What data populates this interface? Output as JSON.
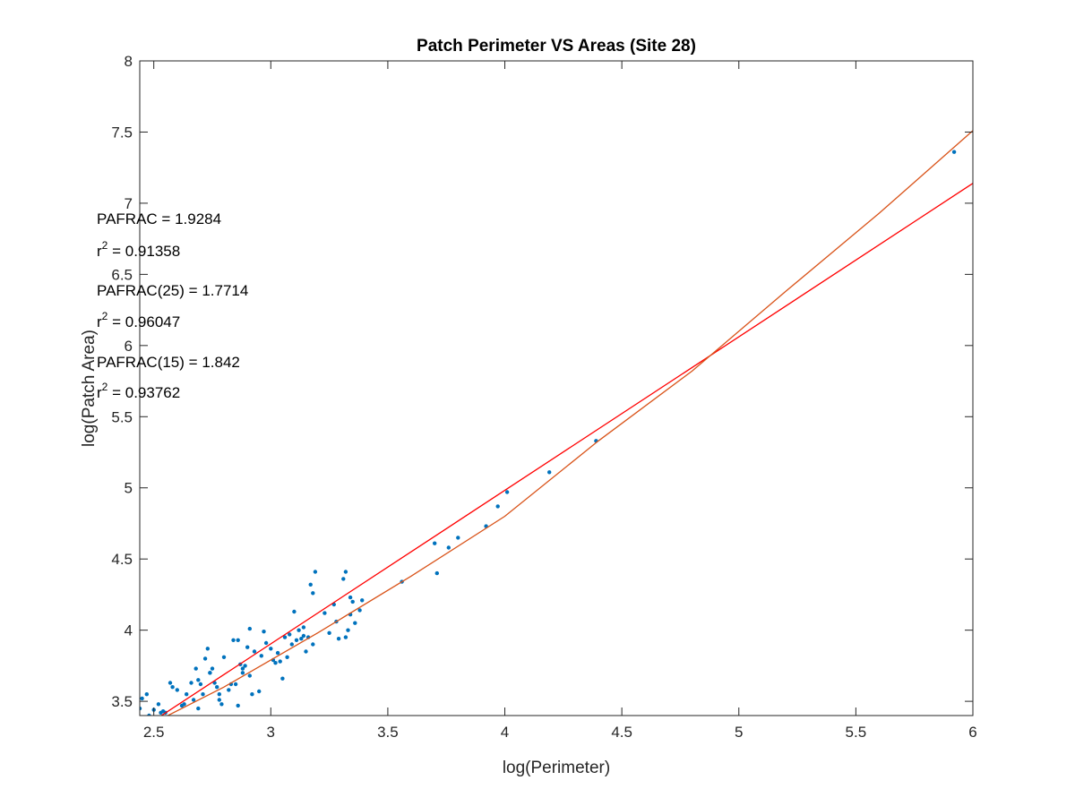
{
  "chart_data": {
    "type": "scatter",
    "title": "Patch Perimeter VS Areas (Site 28)",
    "xlabel": "log(Perimeter)",
    "ylabel": "log(Patch Area)",
    "xlim": [
      2.44,
      6
    ],
    "ylim": [
      3.4,
      8
    ],
    "x_ticks": [
      "2.5",
      "3",
      "3.5",
      "4",
      "4.5",
      "5",
      "5.5",
      "6"
    ],
    "y_ticks": [
      "3.5",
      "4",
      "4.5",
      "5",
      "5.5",
      "6",
      "6.5",
      "7",
      "7.5",
      "8"
    ],
    "grid": false,
    "box": true,
    "colors": {
      "points": "#0072BD",
      "fit_linear": "#FF0000",
      "fit_curve": "#D95319"
    },
    "annotations": [
      {
        "name": "pafrac",
        "prefix": "PAFRAC = ",
        "value": "1.9284"
      },
      {
        "name": "r2-1",
        "prefix": "r",
        "sup": "2",
        "suffix": " = 0.91358"
      },
      {
        "name": "pafrac-25",
        "prefix": "PAFRAC(25) = ",
        "value": "1.7714"
      },
      {
        "name": "r2-2",
        "prefix": "r",
        "sup": "2",
        "suffix": " = 0.96047"
      },
      {
        "name": "pafrac-15",
        "prefix": "PAFRAC(15) = ",
        "value": "1.842"
      },
      {
        "name": "r2-3",
        "prefix": "r",
        "sup": "2",
        "suffix": " = 0.93762"
      }
    ],
    "series": [
      {
        "kind": "scatter",
        "x": [
          2.44,
          2.45,
          2.47,
          2.5,
          2.52,
          2.54,
          2.55,
          2.57,
          2.58,
          2.6,
          2.62,
          2.64,
          2.66,
          2.67,
          2.68,
          2.69,
          2.7,
          2.71,
          2.72,
          2.73,
          2.74,
          2.75,
          2.76,
          2.77,
          2.78,
          2.79,
          2.8,
          2.82,
          2.84,
          2.85,
          2.86,
          2.87,
          2.88,
          2.89,
          2.9,
          2.91,
          2.92,
          2.93,
          2.95,
          2.97,
          2.98,
          3.0,
          3.01,
          3.02,
          3.04,
          3.05,
          3.06,
          3.07,
          3.09,
          3.1,
          3.12,
          3.13,
          3.14,
          3.15,
          3.16,
          3.17,
          3.18,
          3.19,
          3.23,
          3.25,
          3.27,
          3.28,
          3.31,
          3.32,
          3.33,
          3.34,
          3.35,
          3.36,
          3.38,
          3.39,
          3.56,
          3.7,
          3.71,
          3.76,
          3.8,
          3.92,
          3.97,
          4.01,
          4.19,
          4.39,
          5.92,
          2.48,
          2.53,
          2.63,
          2.69,
          2.74,
          2.78,
          2.83,
          2.86,
          2.88,
          2.91,
          2.96,
          3.03,
          3.08,
          3.11,
          3.14,
          3.18,
          3.29,
          3.32,
          3.34
        ],
        "y": [
          3.45,
          3.52,
          3.55,
          3.44,
          3.48,
          3.43,
          3.42,
          3.63,
          3.6,
          3.58,
          3.47,
          3.55,
          3.63,
          3.51,
          3.73,
          3.45,
          3.62,
          3.55,
          3.8,
          3.87,
          3.7,
          3.73,
          3.63,
          3.6,
          3.55,
          3.48,
          3.81,
          3.58,
          3.93,
          3.62,
          3.47,
          3.76,
          3.73,
          3.75,
          3.88,
          4.01,
          3.55,
          3.85,
          3.57,
          3.99,
          3.91,
          3.87,
          3.79,
          3.77,
          3.78,
          3.66,
          3.95,
          3.81,
          3.9,
          4.13,
          4.0,
          3.94,
          4.02,
          3.85,
          3.95,
          4.32,
          4.26,
          4.41,
          4.12,
          3.98,
          4.18,
          4.06,
          4.36,
          4.41,
          4.0,
          4.23,
          4.2,
          4.05,
          4.14,
          4.21,
          4.34,
          4.61,
          4.4,
          4.58,
          4.65,
          4.73,
          4.87,
          4.97,
          5.11,
          5.33,
          7.36,
          3.4,
          3.42,
          3.48,
          3.65,
          3.7,
          3.51,
          3.62,
          3.93,
          3.7,
          3.68,
          3.82,
          3.84,
          3.97,
          3.93,
          3.96,
          3.9,
          3.94,
          3.95,
          4.11
        ]
      },
      {
        "kind": "line",
        "x": [
          2.44,
          6.0
        ],
        "y": [
          3.3,
          7.14
        ]
      },
      {
        "kind": "line",
        "x": [
          2.44,
          2.8,
          3.2,
          3.6,
          4.0,
          4.4,
          4.8,
          5.2,
          5.6,
          6.0
        ],
        "y": [
          3.3,
          3.6,
          3.98,
          4.38,
          4.8,
          5.33,
          5.82,
          6.38,
          6.93,
          7.51
        ]
      }
    ]
  }
}
